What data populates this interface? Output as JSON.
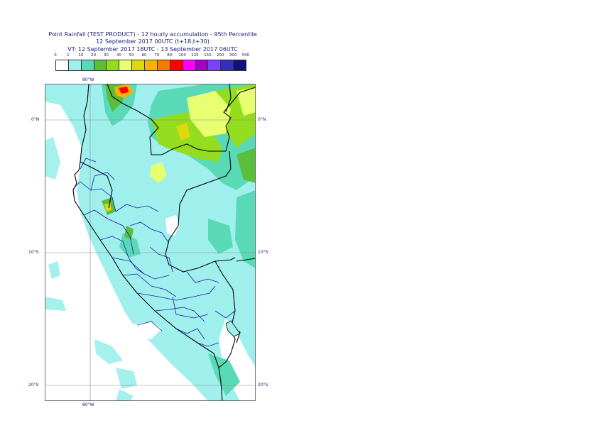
{
  "title": {
    "line1": "Point Rainfall (TEST PRODUCT) - 12 hourly accumulation - 95th Percentile",
    "line2": "12 September 2017 00UTC (t+18,t+30)",
    "line3": "VT: 12 September 2017 18UTC - 13 September 2017 06UTC"
  },
  "legend": {
    "ticks": [
      "0",
      "1",
      "10",
      "20",
      "30",
      "40",
      "50",
      "60",
      "70",
      "80",
      "100",
      "125",
      "150",
      "200",
      "300",
      "500"
    ],
    "colors": [
      "#ffffff",
      "#9ff0ec",
      "#5ad9b7",
      "#5bbd3c",
      "#94dd1e",
      "#e8ff72",
      "#ddd90e",
      "#f5b300",
      "#f57a00",
      "#ff0000",
      "#ff00ff",
      "#a100c8",
      "#7a42ff",
      "#2f2fc0",
      "#10107a"
    ]
  },
  "axes": {
    "lon_top": "80°W",
    "lon_bottom": "80°W",
    "lat_left": [
      "0°N",
      "10°S",
      "20°S"
    ],
    "lat_right": [
      "0°N",
      "10°S",
      "20°S"
    ]
  }
}
